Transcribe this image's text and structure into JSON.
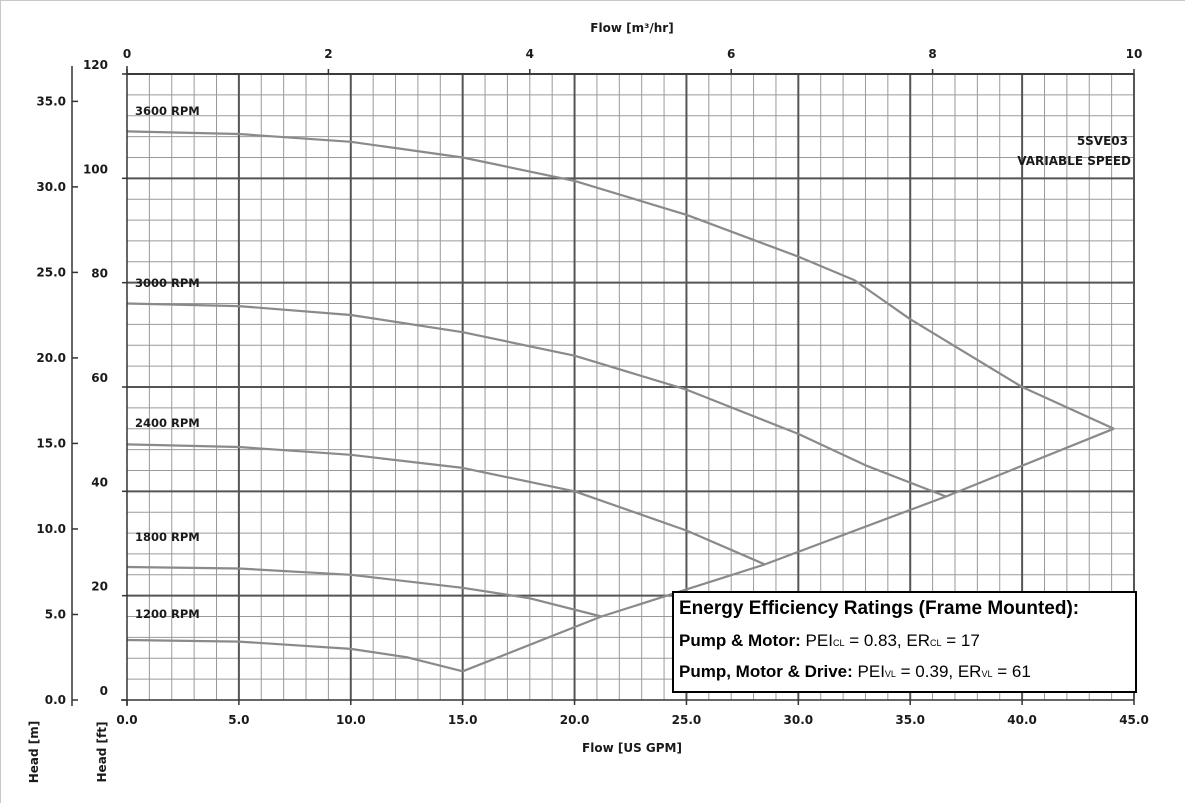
{
  "chart_data": {
    "type": "line",
    "title": "",
    "top_axis": {
      "label": "Flow [m³/hr]",
      "range": [
        0,
        10
      ],
      "ticks": [
        "0",
        "2",
        "4",
        "6",
        "8",
        "10"
      ]
    },
    "x_axis": {
      "label": "Flow [US GPM]",
      "range": [
        0,
        45
      ],
      "ticks": [
        "0.0",
        "5.0",
        "10.0",
        "15.0",
        "20.0",
        "25.0",
        "30.0",
        "35.0",
        "40.0",
        "45.0"
      ]
    },
    "y_axis_ft": {
      "label": "Head [ft]",
      "range": [
        0,
        120
      ],
      "ticks": [
        "0",
        "20",
        "40",
        "60",
        "80",
        "100",
        "120"
      ]
    },
    "y_axis_m": {
      "label": "Head [m]",
      "range": [
        0,
        36.6
      ],
      "ticks": [
        "0.0",
        "5.0",
        "10.0",
        "15.0",
        "20.0",
        "25.0",
        "30.0",
        "35.0"
      ]
    },
    "grid": true,
    "series": [
      {
        "name": "3600 RPM",
        "x": [
          0,
          5,
          10,
          15,
          20,
          25,
          30,
          32.5,
          35,
          40,
          44.1
        ],
        "y": [
          109,
          108.5,
          107,
          104,
          99.5,
          93,
          85,
          80.5,
          73,
          60,
          52
        ]
      },
      {
        "name": "3000 RPM",
        "x": [
          0,
          5,
          10,
          15,
          20,
          25,
          30,
          33,
          36.6
        ],
        "y": [
          76,
          75.5,
          73.8,
          70.5,
          66,
          59.5,
          51,
          45,
          39
        ]
      },
      {
        "name": "2400 RPM",
        "x": [
          0,
          5,
          10,
          15,
          20,
          25,
          28.5
        ],
        "y": [
          49,
          48.5,
          47,
          44.5,
          40,
          32.5,
          26
        ]
      },
      {
        "name": "1800 RPM",
        "x": [
          0,
          5,
          10,
          15,
          18,
          21.2
        ],
        "y": [
          25.5,
          25.2,
          24,
          21.5,
          19.5,
          16
        ]
      },
      {
        "name": "1200 RPM",
        "x": [
          0,
          5,
          10,
          12.5,
          15
        ],
        "y": [
          11.5,
          11.2,
          9.8,
          8.2,
          5.5
        ]
      },
      {
        "name": "",
        "x": [
          15,
          21.2,
          28.5,
          36.6,
          44.1
        ],
        "y": [
          5.5,
          16,
          26,
          39,
          52
        ]
      }
    ],
    "annotations": [
      "5SVE03",
      "VARIABLE SPEED"
    ]
  },
  "ratings": {
    "title": "Energy Efficiency Ratings (Frame Mounted):",
    "line1_label": "Pump & Motor:",
    "line1_pei": " PEI",
    "line1_pei_sub": "CL",
    "line1_pei_val": " = 0.83, ER",
    "line1_er_sub": "CL",
    "line1_er_val": " = 17",
    "line2_label": "Pump, Motor & Drive:",
    "line2_pei": " PEI",
    "line2_pei_sub": "VL",
    "line2_pei_val": " = 0.39, ER",
    "line2_er_sub": "VL",
    "line2_er_val": " = 61"
  },
  "colors": {
    "curve": "#8a8a8a",
    "grid_major": "#555555",
    "grid_minor": "#9a9a9a",
    "axis": "#333333"
  }
}
